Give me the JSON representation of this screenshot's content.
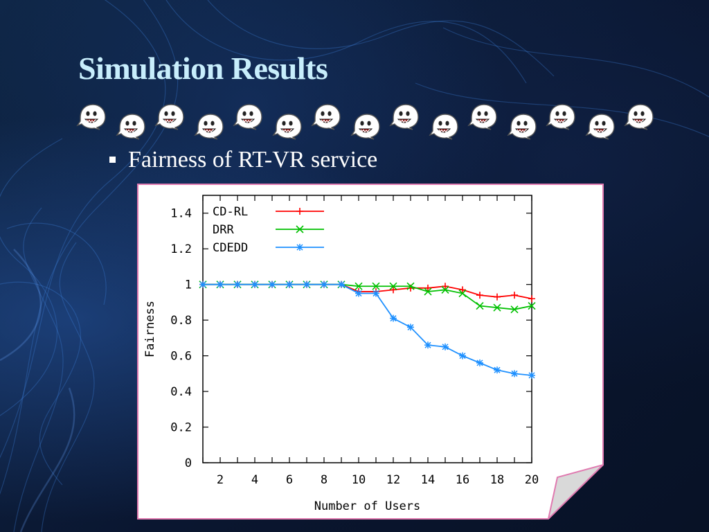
{
  "slide": {
    "title": "Simulation Results",
    "bullet": "Fairness of RT-VR service",
    "ghost_icon_count": 15
  },
  "colors": {
    "title": "#c8eefc",
    "background": "#0d1b33",
    "panel_border": "#e07ab0",
    "series_cdrl": "#ff0000",
    "series_drr": "#00c000",
    "series_cdedd": "#1e90ff"
  },
  "chart_data": {
    "type": "line",
    "title": "",
    "xlabel": "Number of Users",
    "ylabel": "Fairness",
    "xlim": [
      1,
      20
    ],
    "ylim": [
      0,
      1.5
    ],
    "x_ticks": [
      2,
      4,
      6,
      8,
      10,
      12,
      14,
      16,
      18,
      20
    ],
    "y_ticks": [
      0,
      0.2,
      0.4,
      0.6,
      0.8,
      1,
      1.2,
      1.4
    ],
    "y_tick_labels": [
      "0",
      "0.2",
      "0.4",
      "0.6",
      "0.8",
      "1",
      "1.2",
      "1.4"
    ],
    "legend_position": "top-left",
    "series": [
      {
        "name": "CD-RL",
        "color": "#ff0000",
        "marker": "+",
        "x": [
          1,
          2,
          3,
          4,
          5,
          6,
          7,
          8,
          9,
          10,
          11,
          12,
          13,
          14,
          15,
          16,
          17,
          18,
          19,
          20
        ],
        "values": [
          1.0,
          1.0,
          1.0,
          1.0,
          1.0,
          1.0,
          1.0,
          1.0,
          1.0,
          0.96,
          0.96,
          0.97,
          0.98,
          0.98,
          0.99,
          0.97,
          0.94,
          0.93,
          0.94,
          0.92
        ]
      },
      {
        "name": "DRR",
        "color": "#00c000",
        "marker": "x",
        "x": [
          1,
          2,
          3,
          4,
          5,
          6,
          7,
          8,
          9,
          10,
          11,
          12,
          13,
          14,
          15,
          16,
          17,
          18,
          19,
          20
        ],
        "values": [
          1.0,
          1.0,
          1.0,
          1.0,
          1.0,
          1.0,
          1.0,
          1.0,
          1.0,
          0.99,
          0.99,
          0.99,
          0.99,
          0.96,
          0.97,
          0.95,
          0.88,
          0.87,
          0.86,
          0.88
        ]
      },
      {
        "name": "CDEDD",
        "color": "#1e90ff",
        "marker": "*",
        "x": [
          1,
          2,
          3,
          4,
          5,
          6,
          7,
          8,
          9,
          10,
          11,
          12,
          13,
          14,
          15,
          16,
          17,
          18,
          19,
          20
        ],
        "values": [
          1.0,
          1.0,
          1.0,
          1.0,
          1.0,
          1.0,
          1.0,
          1.0,
          1.0,
          0.95,
          0.95,
          0.81,
          0.76,
          0.66,
          0.65,
          0.6,
          0.56,
          0.52,
          0.5,
          0.49
        ]
      }
    ]
  }
}
